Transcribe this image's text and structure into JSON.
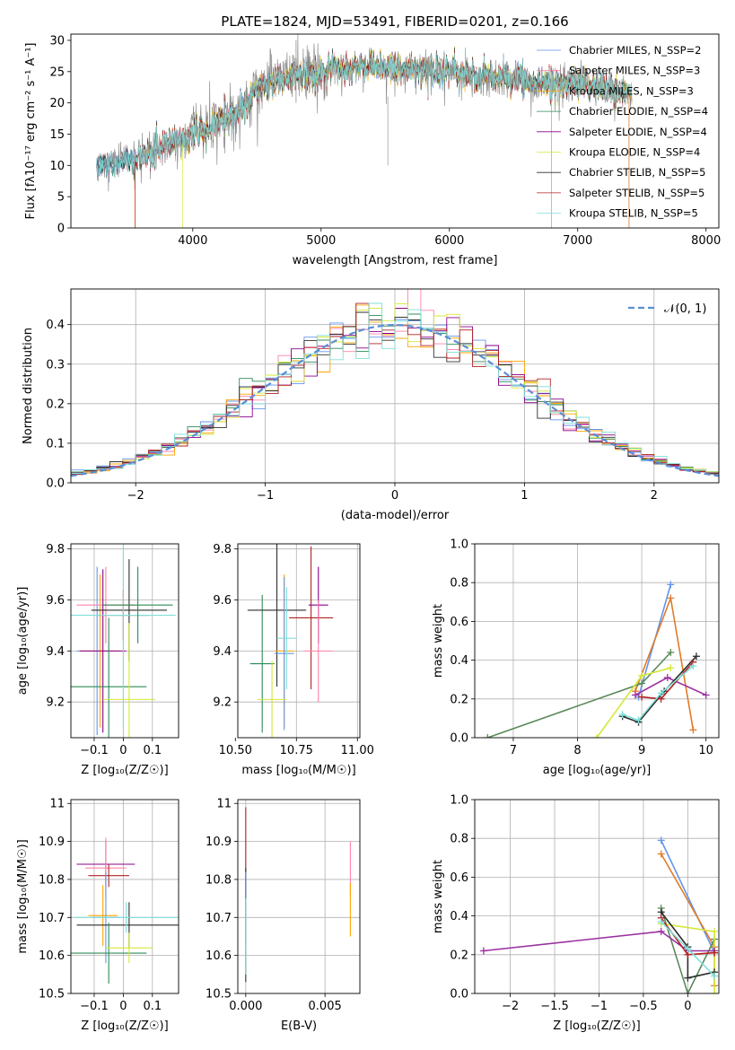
{
  "chart_data": [
    {
      "id": "spectrum",
      "type": "line",
      "title": "PLATE=1824, MJD=53491, FIBERID=0201, z=0.166",
      "xlabel": "wavelength [Angstrom, rest frame]",
      "ylabel": "Flux [fλ10⁻¹⁷ erg cm⁻² s⁻¹ A⁻¹]",
      "xlim": [
        3050,
        8100
      ],
      "ylim": [
        0,
        31
      ],
      "xticks": [
        4000,
        5000,
        6000,
        7000,
        8000
      ],
      "yticks": [
        0,
        5,
        10,
        15,
        20,
        25,
        30
      ],
      "grid": false,
      "legend": "top-right",
      "continuum": {
        "x": [
          3250,
          3400,
          3550,
          3700,
          3850,
          3950,
          4000,
          4100,
          4200,
          4300,
          4400,
          4500,
          4600,
          4700,
          4800,
          4900,
          5000,
          5200,
          5400,
          5600,
          5800,
          6000,
          6200,
          6400,
          6600,
          6800,
          7000,
          7200,
          7400
        ],
        "y": [
          10,
          10.3,
          11,
          12.5,
          13.5,
          14,
          15.5,
          16,
          16.5,
          18,
          19.5,
          22,
          23,
          24,
          25,
          24.5,
          25,
          25.5,
          26,
          25.5,
          25.5,
          25,
          24.5,
          24,
          23.5,
          23,
          23,
          22.5,
          22
        ]
      },
      "series": [
        {
          "name": "Chabrier MILES, N_SSP=2",
          "color": "#6495ed"
        },
        {
          "name": "Salpeter MILES, N_SSP=3",
          "color": "#ff82ab"
        },
        {
          "name": "Kroupa MILES, N_SSP=3",
          "color": "#ffa500"
        },
        {
          "name": "Chabrier ELODIE, N_SSP=4",
          "color": "#2e8b57"
        },
        {
          "name": "Salpeter ELODIE, N_SSP=4",
          "color": "#8b008b"
        },
        {
          "name": "Kroupa ELODIE, N_SSP=4",
          "color": "#d4e836"
        },
        {
          "name": "Chabrier STELIB, N_SSP=5",
          "color": "#2f2f2f"
        },
        {
          "name": "Salpeter STELIB, N_SSP=5",
          "color": "#b22222"
        },
        {
          "name": "Kroupa STELIB, N_SSP=5",
          "color": "#7fdfd9"
        }
      ],
      "data_color": "#808080"
    },
    {
      "id": "residuals",
      "type": "line",
      "xlabel": "(data-model)/error",
      "ylabel": "Normed distribution",
      "xlim": [
        -2.5,
        2.5
      ],
      "ylim": [
        0,
        0.49
      ],
      "xticks": [
        -2,
        -1,
        0,
        1,
        2
      ],
      "yticks": [
        0.0,
        0.1,
        0.2,
        0.3,
        0.4
      ],
      "grid": true,
      "legend": "top-right",
      "reference": {
        "name": "𝒩(0, 1)",
        "color": "#5b8ed6",
        "style": "dashed"
      },
      "bin_width": 0.1
    },
    {
      "id": "age_vs_Z",
      "type": "scatter",
      "xlabel": "Z [log₁₀(Z/Z☉)]",
      "ylabel": "age  [log₁₀(age/yr)]",
      "xlim": [
        -0.18,
        0.19
      ],
      "ylim": [
        9.06,
        9.82
      ],
      "xticks": [
        -0.1,
        0.0,
        0.1
      ],
      "yticks": [
        9.2,
        9.4,
        9.6,
        9.8
      ],
      "grid": true,
      "points": [
        {
          "x": -0.09,
          "y": 9.4,
          "xerr": 0.07,
          "yerr": 0.33,
          "color": "#6495ed"
        },
        {
          "x": -0.08,
          "y": 9.4,
          "xerr": 0.07,
          "yerr": 0.3,
          "color": "#ffa500"
        },
        {
          "x": -0.06,
          "y": 9.58,
          "xerr": 0.1,
          "yerr": 0.15,
          "color": "#ff82ab"
        },
        {
          "x": -0.07,
          "y": 9.4,
          "xerr": 0.08,
          "yerr": 0.32,
          "color": "#8b008b"
        },
        {
          "x": -0.05,
          "y": 9.26,
          "xerr": 0.13,
          "yerr": 0.27,
          "color": "#2e8b57"
        },
        {
          "x": 0.0,
          "y": 9.54,
          "xerr": 0.09,
          "yerr": 0.1,
          "color": "#b22222"
        },
        {
          "x": 0.02,
          "y": 9.56,
          "xerr": 0.13,
          "yerr": 0.2,
          "color": "#2f2f2f"
        },
        {
          "x": 0.0,
          "y": 9.54,
          "xerr": 0.18,
          "yerr": 0.45,
          "color": "#7fdfd9"
        },
        {
          "x": 0.02,
          "y": 9.21,
          "xerr": 0.09,
          "yerr": 0.3,
          "color": "#d4e836"
        },
        {
          "x": 0.05,
          "y": 9.58,
          "xerr": 0.12,
          "yerr": 0.15,
          "color": "#2e8b57"
        }
      ]
    },
    {
      "id": "age_vs_mass",
      "type": "scatter",
      "xlabel": "mass [log₁₀(M/M☉)]",
      "ylabel": "",
      "xlim": [
        10.51,
        11.01
      ],
      "ylim": [
        9.06,
        9.82
      ],
      "xticks": [
        10.5,
        10.75,
        11.0
      ],
      "xticklabels": [
        "10.50",
        "10.75",
        "11.00"
      ],
      "yticks": [
        9.2,
        9.4,
        9.6,
        9.8
      ],
      "grid": true,
      "points": [
        {
          "x": 10.61,
          "y": 9.35,
          "xerr": 0.05,
          "yerr": 0.27,
          "color": "#2e8b57"
        },
        {
          "x": 10.67,
          "y": 9.56,
          "xerr": 0.12,
          "yerr": 0.3,
          "color": "#2f2f2f"
        },
        {
          "x": 10.7,
          "y": 9.4,
          "xerr": 0.04,
          "yerr": 0.3,
          "color": "#ffa500"
        },
        {
          "x": 10.7,
          "y": 9.39,
          "xerr": 0.04,
          "yerr": 0.3,
          "color": "#6495ed"
        },
        {
          "x": 10.71,
          "y": 9.45,
          "xerr": 0.04,
          "yerr": 0.2,
          "color": "#7fdfd9"
        },
        {
          "x": 10.81,
          "y": 9.53,
          "xerr": 0.09,
          "yerr": 0.28,
          "color": "#b22222"
        },
        {
          "x": 10.84,
          "y": 9.58,
          "xerr": 0.04,
          "yerr": 0.15,
          "color": "#8b008b"
        },
        {
          "x": 10.84,
          "y": 9.4,
          "xerr": 0.06,
          "yerr": 0.2,
          "color": "#ff82ab"
        },
        {
          "x": 10.65,
          "y": 9.21,
          "xerr": 0.06,
          "yerr": 0.15,
          "color": "#d4e836"
        }
      ]
    },
    {
      "id": "weight_vs_age",
      "type": "line",
      "xlabel": "age  [log₁₀(age/yr)]",
      "ylabel": "mass weight",
      "xlim": [
        6.4,
        10.2
      ],
      "ylim": [
        0,
        1.0
      ],
      "xticks": [
        7,
        8,
        9,
        10
      ],
      "yticks": [
        0.0,
        0.2,
        0.4,
        0.6,
        0.8,
        1.0
      ],
      "grid": true,
      "series": [
        {
          "color": "#6495ed",
          "x": [
            8.95,
            9.45
          ],
          "y": [
            0.21,
            0.79
          ]
        },
        {
          "color": "#e07b2a",
          "x": [
            8.9,
            9.45,
            9.8
          ],
          "y": [
            0.24,
            0.72,
            0.04
          ]
        },
        {
          "color": "#5a8a5a",
          "x": [
            6.6,
            9.0,
            9.45
          ],
          "y": [
            0.0,
            0.28,
            0.44
          ]
        },
        {
          "color": "#d4e836",
          "x": [
            8.3,
            9.0,
            9.45
          ],
          "y": [
            0.0,
            0.32,
            0.36
          ]
        },
        {
          "color": "#9b30a0",
          "x": [
            8.9,
            9.4,
            10.0
          ],
          "y": [
            0.22,
            0.31,
            0.22
          ]
        },
        {
          "color": "#2f2f2f",
          "x": [
            8.7,
            8.95,
            9.35,
            9.85
          ],
          "y": [
            0.11,
            0.08,
            0.24,
            0.42
          ]
        },
        {
          "color": "#b22222",
          "x": [
            9.0,
            9.3,
            9.8
          ],
          "y": [
            0.21,
            0.2,
            0.39
          ]
        },
        {
          "color": "#7fdfd9",
          "x": [
            8.7,
            8.95,
            9.3,
            9.8
          ],
          "y": [
            0.12,
            0.09,
            0.23,
            0.37
          ]
        }
      ]
    },
    {
      "id": "mass_vs_Z",
      "type": "scatter",
      "xlabel": "Z [log₁₀(Z/Z☉)]",
      "ylabel": "mass [log₁₀(M/M☉)]",
      "xlim": [
        -0.18,
        0.19
      ],
      "ylim": [
        10.5,
        11.01
      ],
      "xticks": [
        -0.1,
        0.0,
        0.1
      ],
      "yticks": [
        10.5,
        10.6,
        10.7,
        10.8,
        10.9,
        11.0
      ],
      "grid": true,
      "points": [
        {
          "x": -0.06,
          "y": 10.84,
          "xerr": 0.1,
          "yerr": 0.06,
          "color": "#8b008b"
        },
        {
          "x": -0.06,
          "y": 10.83,
          "xerr": 0.07,
          "yerr": 0.08,
          "color": "#ff82ab"
        },
        {
          "x": -0.05,
          "y": 10.81,
          "xerr": 0.07,
          "yerr": 0.03,
          "color": "#b22222"
        },
        {
          "x": -0.07,
          "y": 10.705,
          "xerr": 0.05,
          "yerr": 0.08,
          "color": "#ffa500"
        },
        {
          "x": -0.06,
          "y": 10.7,
          "xerr": 0.05,
          "yerr": 0.12,
          "color": "#6495ed"
        },
        {
          "x": 0.02,
          "y": 10.68,
          "xerr": 0.18,
          "yerr": 0.06,
          "color": "#2f2f2f"
        },
        {
          "x": 0.01,
          "y": 10.7,
          "xerr": 0.18,
          "yerr": 0.04,
          "color": "#7fdfd9"
        },
        {
          "x": -0.05,
          "y": 10.606,
          "xerr": 0.13,
          "yerr": 0.08,
          "color": "#2e8b57"
        },
        {
          "x": 0.02,
          "y": 10.62,
          "xerr": 0.08,
          "yerr": 0.04,
          "color": "#d4e836"
        }
      ]
    },
    {
      "id": "mass_vs_EBV",
      "type": "scatter",
      "xlabel": "E(B-V)",
      "ylabel": "",
      "xlim": [
        -0.0005,
        0.0072
      ],
      "ylim": [
        10.5,
        11.01
      ],
      "xticks": [
        0.0,
        0.005
      ],
      "xticklabels": [
        "0.000",
        "0.005"
      ],
      "yticks": [
        10.5,
        10.6,
        10.7,
        10.8,
        10.9,
        11.0
      ],
      "grid": true,
      "points": [
        {
          "x": 0.0,
          "y": 10.81,
          "xerr": 0,
          "yerr": 0.18,
          "color": "#b22222"
        },
        {
          "x": 0.0,
          "y": 10.68,
          "xerr": 0,
          "yerr": 0.15,
          "color": "#2f2f2f"
        },
        {
          "x": 0.0,
          "y": 10.72,
          "xerr": 0,
          "yerr": 0.1,
          "color": "#6495ed"
        },
        {
          "x": 0.0,
          "y": 10.65,
          "xerr": 0,
          "yerr": 0.1,
          "color": "#7fdfd9"
        },
        {
          "x": 0.0066,
          "y": 10.83,
          "xerr": 0,
          "yerr": 0.07,
          "color": "#ff82ab"
        },
        {
          "x": 0.0066,
          "y": 10.72,
          "xerr": 0,
          "yerr": 0.07,
          "color": "#ffa500"
        }
      ]
    },
    {
      "id": "weight_vs_Z",
      "type": "line",
      "xlabel": "Z [log₁₀(Z/Z☉)]",
      "ylabel": "mass weight",
      "xlim": [
        -2.4,
        0.35
      ],
      "ylim": [
        0,
        1.0
      ],
      "xticks": [
        -2.0,
        -1.5,
        -1.0,
        -0.5,
        0.0
      ],
      "yticks": [
        0.0,
        0.2,
        0.4,
        0.6,
        0.8,
        1.0
      ],
      "grid": true,
      "series": [
        {
          "color": "#6495ed",
          "x": [
            -0.3,
            0.3
          ],
          "y": [
            0.79,
            0.21
          ]
        },
        {
          "color": "#e07b2a",
          "x": [
            -0.3,
            0.3,
            0.3
          ],
          "y": [
            0.72,
            0.24,
            0.04
          ]
        },
        {
          "color": "#5a8a5a",
          "x": [
            -0.3,
            0.0,
            0.3
          ],
          "y": [
            0.44,
            0.0,
            0.28
          ]
        },
        {
          "color": "#d4e836",
          "x": [
            -0.3,
            0.3,
            0.3
          ],
          "y": [
            0.36,
            0.32,
            0.0
          ]
        },
        {
          "color": "#9b30a0",
          "x": [
            -2.3,
            -0.3,
            0.0,
            0.3
          ],
          "y": [
            0.22,
            0.32,
            0.22,
            0.22
          ]
        },
        {
          "color": "#2f2f2f",
          "x": [
            -0.3,
            0.0,
            0.0,
            0.3
          ],
          "y": [
            0.42,
            0.24,
            0.08,
            0.11
          ]
        },
        {
          "color": "#b22222",
          "x": [
            -0.3,
            0.0,
            0.3
          ],
          "y": [
            0.39,
            0.2,
            0.21
          ]
        },
        {
          "color": "#7fdfd9",
          "x": [
            -0.3,
            0.0,
            0.3
          ],
          "y": [
            0.37,
            0.23,
            0.09
          ]
        }
      ]
    }
  ]
}
